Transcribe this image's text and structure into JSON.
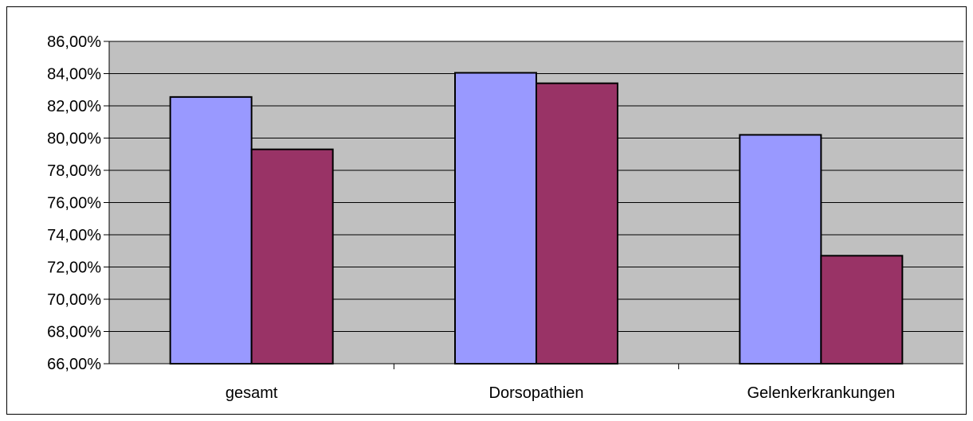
{
  "chart_data": {
    "type": "bar",
    "title": "",
    "xlabel": "",
    "ylabel": "",
    "categories": [
      "gesamt",
      "Dorsopathien",
      "Gelenkerkrankungen"
    ],
    "series": [
      {
        "values": [
          82.55,
          84.05,
          80.2
        ],
        "color": "#9999ff"
      },
      {
        "values": [
          79.3,
          83.4,
          72.7
        ],
        "color": "#993366"
      }
    ],
    "ylim": [
      66,
      86
    ],
    "yticks": [
      "66,00%",
      "68,00%",
      "70,00%",
      "72,00%",
      "74,00%",
      "76,00%",
      "78,00%",
      "80,00%",
      "82,00%",
      "84,00%",
      "86,00%"
    ],
    "grid": true,
    "legend": "none",
    "plot_background": "#c0c0c0"
  }
}
